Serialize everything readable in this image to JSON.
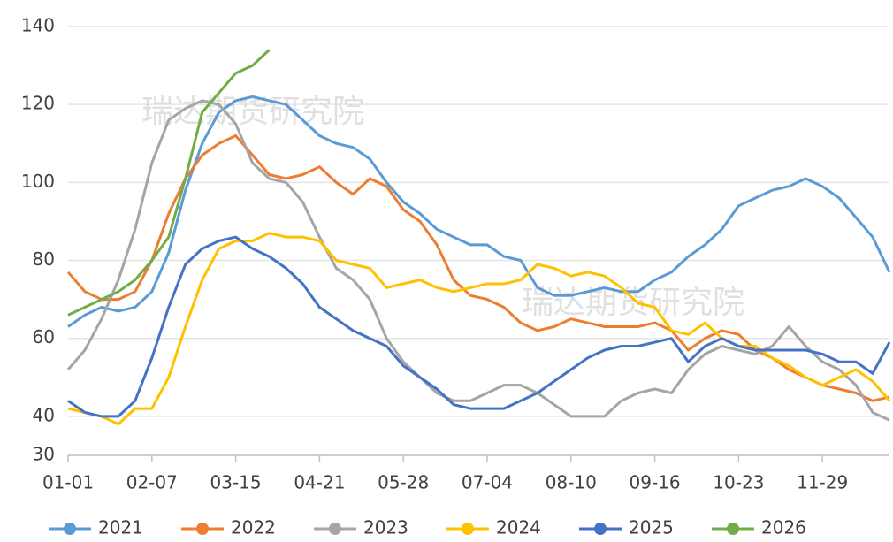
{
  "chart_data": {
    "type": "line",
    "watermark": "瑞达期货研究院",
    "categories": [
      "01-01",
      null,
      null,
      null,
      null,
      "02-07",
      null,
      null,
      null,
      null,
      "03-15",
      null,
      null,
      null,
      null,
      "04-21",
      null,
      null,
      null,
      null,
      "05-28",
      null,
      null,
      null,
      null,
      "07-04",
      null,
      null,
      null,
      null,
      "08-10",
      null,
      null,
      null,
      null,
      "09-16",
      null,
      null,
      null,
      null,
      "10-23",
      null,
      null,
      null,
      null,
      "11-29",
      null,
      null,
      null,
      null
    ],
    "ylim": [
      30,
      140
    ],
    "yticks": [
      30,
      40,
      60,
      80,
      100,
      120,
      140
    ],
    "grid": true,
    "legend": "bottom",
    "series": [
      {
        "name": "2021",
        "color": "#5b9bd5",
        "values": [
          63,
          66,
          68,
          67,
          68,
          72,
          82,
          98,
          110,
          118,
          121,
          122,
          121,
          120,
          116,
          112,
          110,
          109,
          106,
          100,
          95,
          92,
          88,
          86,
          84,
          84,
          81,
          80,
          73,
          71,
          71,
          72,
          73,
          72,
          72,
          75,
          77,
          81,
          84,
          88,
          94,
          96,
          98,
          99,
          101,
          99,
          96,
          91,
          86,
          77
        ]
      },
      {
        "name": "2022",
        "color": "#ed7d31",
        "values": [
          77,
          72,
          70,
          70,
          72,
          80,
          92,
          101,
          107,
          110,
          112,
          107,
          102,
          101,
          102,
          104,
          100,
          97,
          101,
          99,
          93,
          90,
          84,
          75,
          71,
          70,
          68,
          64,
          62,
          63,
          65,
          64,
          63,
          63,
          63,
          64,
          62,
          57,
          60,
          62,
          61,
          57,
          55,
          52,
          50,
          48,
          47,
          46,
          44,
          45
        ]
      },
      {
        "name": "2023",
        "color": "#a5a5a5",
        "values": [
          52,
          57,
          65,
          75,
          88,
          105,
          116,
          119,
          121,
          120,
          115,
          105,
          101,
          100,
          95,
          86,
          78,
          75,
          70,
          60,
          54,
          50,
          46,
          44,
          44,
          46,
          48,
          48,
          46,
          43,
          40,
          40,
          40,
          44,
          46,
          47,
          46,
          52,
          56,
          58,
          57,
          56,
          58,
          63,
          58,
          54,
          52,
          48,
          41,
          39
        ]
      },
      {
        "name": "2024",
        "color": "#ffc000",
        "values": [
          42,
          41,
          40,
          38,
          42,
          42,
          50,
          63,
          75,
          83,
          85,
          85,
          87,
          86,
          86,
          85,
          80,
          79,
          78,
          73,
          74,
          75,
          73,
          72,
          73,
          74,
          74,
          75,
          79,
          78,
          76,
          77,
          76,
          73,
          69,
          68,
          62,
          61,
          64,
          60,
          58,
          58,
          55,
          53,
          50,
          48,
          50,
          52,
          49,
          44
        ]
      },
      {
        "name": "2025",
        "color": "#4472c4",
        "values": [
          44,
          41,
          40,
          40,
          44,
          55,
          68,
          79,
          83,
          85,
          86,
          83,
          81,
          78,
          74,
          68,
          65,
          62,
          60,
          58,
          53,
          50,
          47,
          43,
          42,
          42,
          42,
          44,
          46,
          49,
          52,
          55,
          57,
          58,
          58,
          59,
          60,
          54,
          58,
          60,
          58,
          57,
          57,
          57,
          57,
          56,
          54,
          54,
          51,
          59
        ]
      },
      {
        "name": "2026",
        "color": "#70ad47",
        "values": [
          66,
          68,
          70,
          72,
          75,
          80,
          86,
          101,
          118,
          123,
          128,
          130,
          134,
          null,
          null,
          null,
          null,
          null,
          null,
          null,
          null,
          null,
          null,
          null,
          null,
          null,
          null,
          null,
          null,
          null,
          null,
          null,
          null,
          null,
          null,
          null,
          null,
          null,
          null,
          null,
          null,
          null,
          null,
          null,
          null,
          null,
          null,
          null,
          null,
          null
        ]
      }
    ]
  }
}
